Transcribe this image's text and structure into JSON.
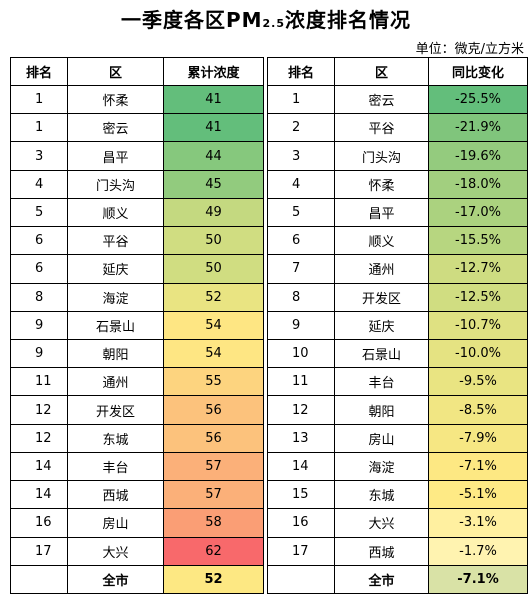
{
  "title": "一季度各区PM",
  "title_sub": "2.5",
  "title_suffix": "浓度排名情况",
  "unit": "单位：微克/立方米",
  "headers": {
    "left": [
      "排名",
      "区",
      "累计浓度"
    ],
    "right": [
      "排名",
      "区",
      "同比变化"
    ]
  },
  "left_rows": [
    {
      "rank": "1",
      "district": "怀柔",
      "value": "41",
      "color": "#63be7b"
    },
    {
      "rank": "1",
      "district": "密云",
      "value": "41",
      "color": "#63be7b"
    },
    {
      "rank": "3",
      "district": "昌平",
      "value": "44",
      "color": "#86c87d"
    },
    {
      "rank": "4",
      "district": "门头沟",
      "value": "45",
      "color": "#92cb7e"
    },
    {
      "rank": "5",
      "district": "顺义",
      "value": "49",
      "color": "#c4d980"
    },
    {
      "rank": "6",
      "district": "平谷",
      "value": "50",
      "color": "#d0dd81"
    },
    {
      "rank": "6",
      "district": "延庆",
      "value": "50",
      "color": "#d0dd81"
    },
    {
      "rank": "8",
      "district": "海淀",
      "value": "52",
      "color": "#e9e482"
    },
    {
      "rank": "9",
      "district": "石景山",
      "value": "54",
      "color": "#fee683"
    },
    {
      "rank": "9",
      "district": "朝阳",
      "value": "54",
      "color": "#fee683"
    },
    {
      "rank": "11",
      "district": "通州",
      "value": "55",
      "color": "#fdd47f"
    },
    {
      "rank": "12",
      "district": "开发区",
      "value": "56",
      "color": "#fcc27c"
    },
    {
      "rank": "12",
      "district": "东城",
      "value": "56",
      "color": "#fcc27c"
    },
    {
      "rank": "14",
      "district": "丰台",
      "value": "57",
      "color": "#fbb079"
    },
    {
      "rank": "14",
      "district": "西城",
      "value": "57",
      "color": "#fbb079"
    },
    {
      "rank": "16",
      "district": "房山",
      "value": "58",
      "color": "#fa9e75"
    },
    {
      "rank": "17",
      "district": "大兴",
      "value": "62",
      "color": "#f8696b"
    }
  ],
  "right_rows": [
    {
      "rank": "1",
      "district": "密云",
      "value": "-25.5%",
      "color": "#63be7b"
    },
    {
      "rank": "2",
      "district": "平谷",
      "value": "-21.9%",
      "color": "#80c57c"
    },
    {
      "rank": "3",
      "district": "门头沟",
      "value": "-19.6%",
      "color": "#94cb7e"
    },
    {
      "rank": "4",
      "district": "怀柔",
      "value": "-18.0%",
      "color": "#a2cf7f"
    },
    {
      "rank": "5",
      "district": "昌平",
      "value": "-17.0%",
      "color": "#abd27f"
    },
    {
      "rank": "6",
      "district": "顺义",
      "value": "-15.5%",
      "color": "#b7d680"
    },
    {
      "rank": "7",
      "district": "通州",
      "value": "-12.7%",
      "color": "#cedc81"
    },
    {
      "rank": "8",
      "district": "开发区",
      "value": "-12.5%",
      "color": "#d0dd81"
    },
    {
      "rank": "9",
      "district": "延庆",
      "value": "-10.7%",
      "color": "#dfe182"
    },
    {
      "rank": "10",
      "district": "石景山",
      "value": "-10.0%",
      "color": "#e5e382"
    },
    {
      "rank": "11",
      "district": "丰台",
      "value": "-9.5%",
      "color": "#e9e482"
    },
    {
      "rank": "12",
      "district": "朝阳",
      "value": "-8.5%",
      "color": "#f1e683"
    },
    {
      "rank": "13",
      "district": "房山",
      "value": "-7.9%",
      "color": "#f6e783"
    },
    {
      "rank": "14",
      "district": "海淀",
      "value": "-7.1%",
      "color": "#fde883"
    },
    {
      "rank": "15",
      "district": "东城",
      "value": "-5.1%",
      "color": "#feea85"
    },
    {
      "rank": "16",
      "district": "大兴",
      "value": "-3.1%",
      "color": "#fff0a0"
    },
    {
      "rank": "17",
      "district": "西城",
      "value": "-1.7%",
      "color": "#fff3b0"
    }
  ],
  "total": {
    "left_label": "全市",
    "left_value": "52",
    "left_color": "#fde883",
    "right_label": "全市",
    "right_value": "-7.1%",
    "right_color": "#d9e2a6"
  }
}
